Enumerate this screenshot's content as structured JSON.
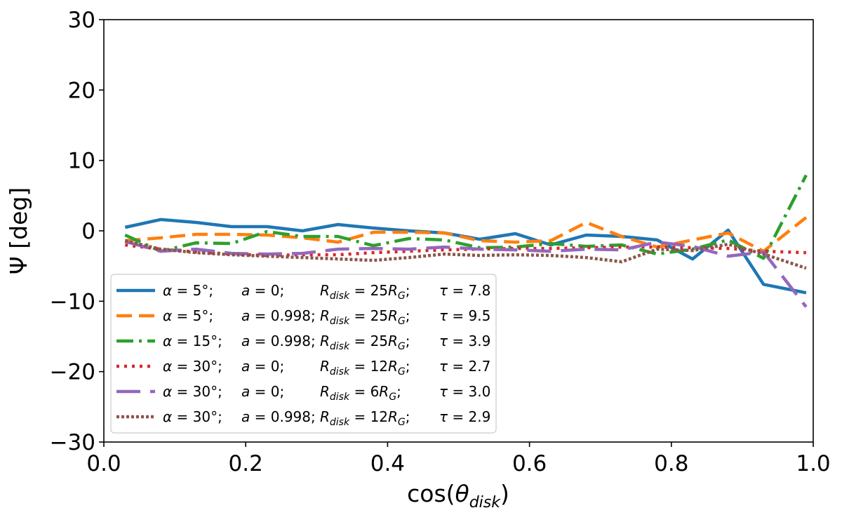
{
  "chart_data": {
    "type": "line",
    "xlabel": "cos(θ_disk)",
    "xlabel_main": "cos(",
    "xlabel_theta": "θ",
    "xlabel_sub": "disk",
    "xlabel_close": ")",
    "ylabel": "Ψ [deg]",
    "xlim": [
      0.0,
      1.0
    ],
    "ylim": [
      -30,
      30
    ],
    "xticks": [
      0.0,
      0.2,
      0.4,
      0.6,
      0.8,
      1.0
    ],
    "xtick_labels": [
      "0.0",
      "0.2",
      "0.4",
      "0.6",
      "0.8",
      "1.0"
    ],
    "yticks": [
      -30,
      -20,
      -10,
      0,
      10,
      20,
      30
    ],
    "ytick_labels": [
      "−30",
      "−20",
      "−10",
      "0",
      "10",
      "20",
      "30"
    ],
    "grid": false,
    "legend_position": "lower-left",
    "x": [
      0.03,
      0.08,
      0.13,
      0.18,
      0.23,
      0.28,
      0.33,
      0.38,
      0.43,
      0.48,
      0.53,
      0.58,
      0.63,
      0.68,
      0.73,
      0.78,
      0.83,
      0.88,
      0.93,
      0.99
    ],
    "series": [
      {
        "name": "α = 5°; a = 0; R_disk = 25R_G; τ = 7.8",
        "legend": {
          "alpha": "5°;",
          "a": "0;",
          "r": "25",
          "tau": "7.8"
        },
        "color": "#1f77b4",
        "dash": "",
        "values": [
          0.5,
          1.6,
          1.2,
          0.6,
          0.6,
          0.0,
          0.9,
          0.4,
          0.0,
          -0.3,
          -1.2,
          -0.4,
          -2.0,
          -0.6,
          -0.8,
          -1.3,
          -4.0,
          0.1,
          -7.6,
          -8.8
        ]
      },
      {
        "name": "α = 5°; a = 0.998; R_disk = 25R_G; τ = 9.5",
        "legend": {
          "alpha": "5°;",
          "a": "0.998;",
          "r": "25",
          "tau": "9.5"
        },
        "color": "#ff7f0e",
        "dash": "22,10",
        "values": [
          -1.4,
          -1.0,
          -0.5,
          -0.5,
          -0.6,
          -1.0,
          -1.6,
          -0.2,
          -0.2,
          -0.3,
          -1.4,
          -1.6,
          -1.4,
          1.2,
          -0.8,
          -2.3,
          -1.3,
          -0.3,
          -2.9,
          1.9
        ]
      },
      {
        "name": "α = 15°; a = 0.998; R_disk = 25R_G; τ = 3.9",
        "legend": {
          "alpha": "15°;",
          "a": "0.998;",
          "r": "25",
          "tau": "3.9"
        },
        "color": "#2ca02c",
        "dash": "24,8,4,8",
        "values": [
          -0.6,
          -2.9,
          -1.7,
          -1.8,
          -0.1,
          -0.8,
          -0.8,
          -2.1,
          -1.1,
          -1.3,
          -2.4,
          -2.3,
          -1.8,
          -2.2,
          -2.0,
          -3.3,
          -2.6,
          -1.3,
          -3.9,
          7.9
        ]
      },
      {
        "name": "α = 30°; a = 0; R_disk = 12R_G; τ = 2.7",
        "legend": {
          "alpha": "30°;",
          "a": "0;",
          "r": "12",
          "tau": "2.7"
        },
        "color": "#d62728",
        "dash": "4,7",
        "values": [
          -2.0,
          -2.6,
          -3.0,
          -3.3,
          -3.5,
          -3.4,
          -3.4,
          -3.1,
          -2.9,
          -2.7,
          -2.6,
          -2.5,
          -2.5,
          -2.4,
          -2.3,
          -2.3,
          -2.4,
          -2.5,
          -2.9,
          -3.1
        ]
      },
      {
        "name": "α = 30°; a = 0; R_disk = 6R_G; τ = 3.0",
        "legend": {
          "alpha": "30°;",
          "a": "0;",
          "r": "6",
          "tau": "3.0"
        },
        "color": "#9467bd",
        "dash": "34,14",
        "values": [
          -1.5,
          -2.9,
          -2.6,
          -3.2,
          -3.3,
          -3.2,
          -2.6,
          -2.5,
          -2.6,
          -2.3,
          -2.6,
          -2.7,
          -2.9,
          -2.6,
          -2.7,
          -1.6,
          -2.2,
          -3.6,
          -3.0,
          -10.8
        ]
      },
      {
        "name": "α = 30°; a = 0.998; R_disk = 12R_G; τ = 2.9",
        "legend": {
          "alpha": "30°;",
          "a": "0.998;",
          "r": "12",
          "tau": "2.9"
        },
        "color": "#8c564b",
        "dash": "4,3",
        "values": [
          -1.4,
          -2.6,
          -3.1,
          -3.4,
          -3.6,
          -3.8,
          -4.0,
          -4.2,
          -3.8,
          -3.3,
          -3.5,
          -3.4,
          -3.5,
          -3.8,
          -4.4,
          -2.6,
          -2.8,
          -1.9,
          -3.3,
          -5.3
        ]
      }
    ]
  }
}
